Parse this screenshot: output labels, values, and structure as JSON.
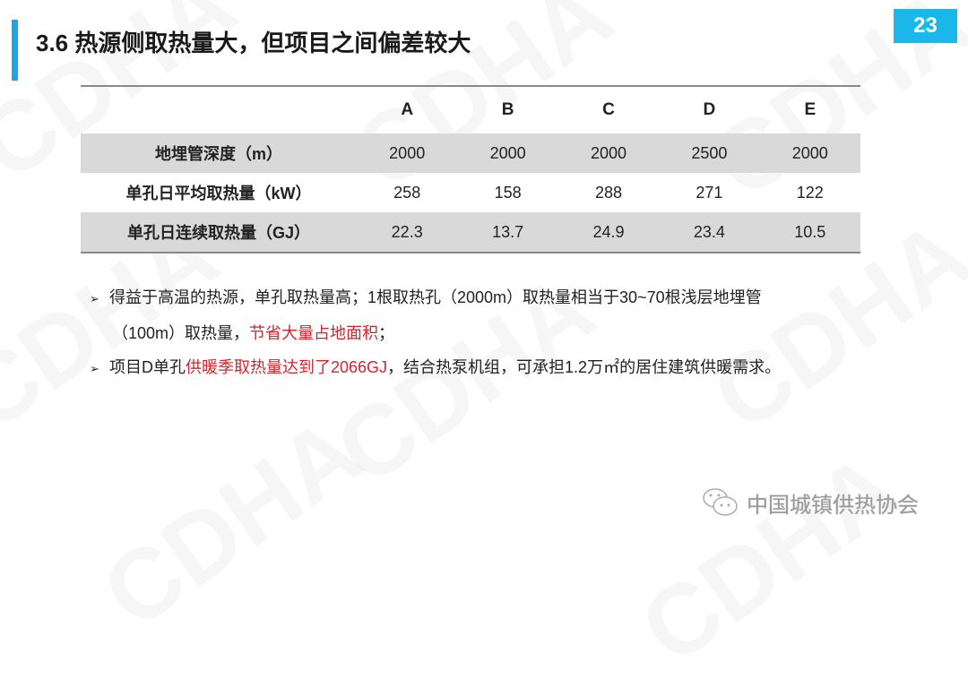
{
  "watermark": "CDHA",
  "title": "3.6 热源侧取热量大，但项目之间偏差较大",
  "page_number": "23",
  "table": {
    "headers": [
      "",
      "A",
      "B",
      "C",
      "D",
      "E"
    ],
    "rows": [
      {
        "label": "地埋管深度（m）",
        "values": [
          "2000",
          "2000",
          "2000",
          "2500",
          "2000"
        ]
      },
      {
        "label": "单孔日平均取热量（kW）",
        "values": [
          "258",
          "158",
          "288",
          "271",
          "122"
        ]
      },
      {
        "label": "单孔日连续取热量（GJ）",
        "values": [
          "22.3",
          "13.7",
          "24.9",
          "23.4",
          "10.5"
        ]
      }
    ]
  },
  "bullets": {
    "b1_line1": "得益于高温的热源，单孔取热量高；1根取热孔（2000m）取热量相当于30~70根浅层地埋管",
    "b1_line2_a": "（100m）取热量，",
    "b1_line2_red": "节省大量占地面积",
    "b1_line2_b": "；",
    "b2_a": "项目D单孔",
    "b2_red": "供暖季取热量达到了2066GJ",
    "b2_b": "，结合热泵机组，可承担1.2万㎡的居住建筑供暖需求。"
  },
  "footer": {
    "icon": "wechat-icon",
    "text": "中国城镇供热协会"
  },
  "colors": {
    "accent": "#1ab8ea",
    "highlight": "#d0262d",
    "row_gray": "#d9d9d9"
  }
}
